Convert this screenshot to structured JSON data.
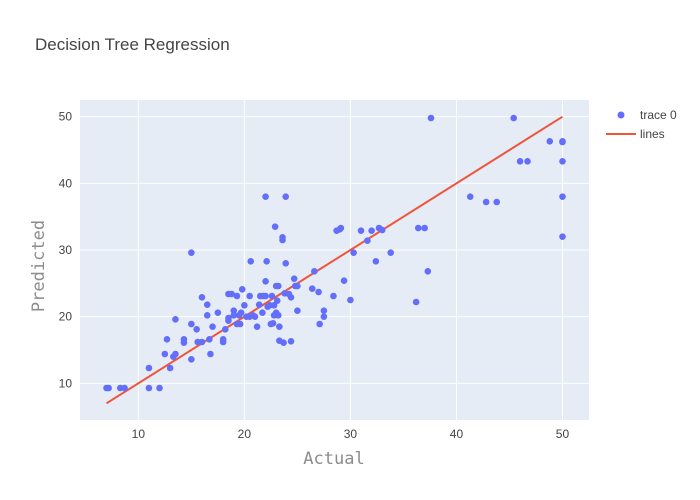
{
  "chart_data": {
    "type": "scatter",
    "title": "Decision Tree Regression",
    "xlabel": "Actual",
    "ylabel": "Predicted",
    "xlim": [
      4.5,
      52.5
    ],
    "ylim": [
      4.5,
      52.5
    ],
    "x_ticks": [
      10,
      20,
      30,
      40,
      50
    ],
    "y_ticks": [
      10,
      20,
      30,
      40,
      50
    ],
    "grid": true,
    "legend_position": "top-right",
    "colors": {
      "plot_bg": "#e5ecf6",
      "grid": "#ffffff",
      "points": "#636efa",
      "line": "#ef553b"
    },
    "series": [
      {
        "name": "trace 0",
        "mode": "markers",
        "points": [
          [
            7.0,
            9.3
          ],
          [
            7.2,
            9.3
          ],
          [
            8.3,
            9.3
          ],
          [
            8.7,
            9.3
          ],
          [
            11.0,
            12.3
          ],
          [
            11.0,
            9.3
          ],
          [
            12.0,
            9.3
          ],
          [
            12.5,
            14.4
          ],
          [
            12.7,
            16.6
          ],
          [
            13.0,
            12.3
          ],
          [
            13.3,
            14.0
          ],
          [
            13.5,
            14.4
          ],
          [
            13.5,
            19.6
          ],
          [
            14.3,
            16.1
          ],
          [
            14.3,
            16.6
          ],
          [
            15.0,
            13.6
          ],
          [
            15.0,
            29.6
          ],
          [
            15.0,
            18.9
          ],
          [
            15.5,
            18.1
          ],
          [
            15.6,
            16.2
          ],
          [
            16.0,
            22.9
          ],
          [
            16.0,
            16.2
          ],
          [
            16.5,
            21.8
          ],
          [
            16.5,
            20.2
          ],
          [
            16.7,
            16.6
          ],
          [
            16.8,
            14.4
          ],
          [
            17.0,
            18.5
          ],
          [
            17.5,
            20.6
          ],
          [
            18.0,
            16.6
          ],
          [
            18.0,
            16.2
          ],
          [
            18.2,
            18.1
          ],
          [
            18.5,
            19.4
          ],
          [
            18.5,
            23.4
          ],
          [
            18.5,
            19.8
          ],
          [
            18.8,
            23.4
          ],
          [
            19.0,
            20.2
          ],
          [
            19.0,
            20.9
          ],
          [
            19.3,
            23.1
          ],
          [
            19.3,
            18.9
          ],
          [
            19.5,
            20.2
          ],
          [
            19.6,
            18.9
          ],
          [
            19.7,
            20.6
          ],
          [
            19.8,
            24.1
          ],
          [
            20.0,
            21.7
          ],
          [
            20.2,
            20.0
          ],
          [
            20.5,
            20.0
          ],
          [
            20.5,
            23.1
          ],
          [
            20.6,
            28.3
          ],
          [
            20.8,
            20.2
          ],
          [
            21.0,
            20.0
          ],
          [
            21.2,
            18.5
          ],
          [
            21.4,
            21.8
          ],
          [
            21.5,
            23.1
          ],
          [
            21.7,
            20.6
          ],
          [
            21.8,
            23.1
          ],
          [
            22.0,
            38.0
          ],
          [
            22.0,
            25.3
          ],
          [
            22.0,
            23.1
          ],
          [
            22.1,
            28.3
          ],
          [
            22.2,
            21.5
          ],
          [
            22.4,
            21.7
          ],
          [
            22.5,
            18.9
          ],
          [
            22.6,
            23.1
          ],
          [
            22.7,
            19.0
          ],
          [
            22.8,
            20.2
          ],
          [
            22.8,
            21.7
          ],
          [
            22.9,
            33.5
          ],
          [
            23.0,
            24.6
          ],
          [
            23.0,
            20.6
          ],
          [
            23.1,
            22.4
          ],
          [
            23.2,
            24.6
          ],
          [
            23.2,
            20.2
          ],
          [
            23.3,
            18.5
          ],
          [
            23.3,
            16.4
          ],
          [
            23.6,
            31.5
          ],
          [
            23.6,
            31.9
          ],
          [
            23.7,
            16.1
          ],
          [
            23.8,
            23.5
          ],
          [
            23.9,
            38.0
          ],
          [
            23.9,
            28.0
          ],
          [
            24.2,
            23.4
          ],
          [
            24.4,
            16.3
          ],
          [
            24.4,
            22.9
          ],
          [
            24.7,
            25.7
          ],
          [
            24.8,
            24.6
          ],
          [
            25.0,
            24.6
          ],
          [
            25.0,
            20.9
          ],
          [
            26.4,
            24.2
          ],
          [
            26.6,
            26.8
          ],
          [
            27.0,
            23.7
          ],
          [
            27.1,
            18.9
          ],
          [
            27.5,
            20.9
          ],
          [
            27.5,
            20.0
          ],
          [
            28.4,
            23.1
          ],
          [
            28.7,
            32.9
          ],
          [
            29.0,
            33.1
          ],
          [
            29.1,
            33.3
          ],
          [
            29.4,
            25.4
          ],
          [
            30.0,
            22.5
          ],
          [
            30.3,
            29.6
          ],
          [
            31.0,
            32.9
          ],
          [
            31.6,
            31.4
          ],
          [
            32.0,
            32.9
          ],
          [
            32.4,
            28.3
          ],
          [
            32.7,
            33.3
          ],
          [
            33.0,
            33.0
          ],
          [
            33.8,
            29.6
          ],
          [
            36.2,
            22.2
          ],
          [
            36.4,
            33.3
          ],
          [
            37.0,
            33.3
          ],
          [
            37.3,
            26.8
          ],
          [
            37.6,
            49.8
          ],
          [
            41.3,
            38.0
          ],
          [
            42.8,
            37.2
          ],
          [
            43.8,
            37.2
          ],
          [
            45.4,
            49.8
          ],
          [
            46.0,
            43.3
          ],
          [
            46.7,
            43.3
          ],
          [
            48.8,
            46.3
          ],
          [
            50.0,
            46.2
          ],
          [
            50.0,
            46.3
          ],
          [
            50.0,
            43.3
          ],
          [
            50.0,
            38.0
          ],
          [
            50.0,
            32.0
          ]
        ]
      },
      {
        "name": "lines",
        "mode": "lines",
        "points": [
          [
            7.0,
            7.0
          ],
          [
            50.0,
            50.0
          ]
        ]
      }
    ]
  }
}
